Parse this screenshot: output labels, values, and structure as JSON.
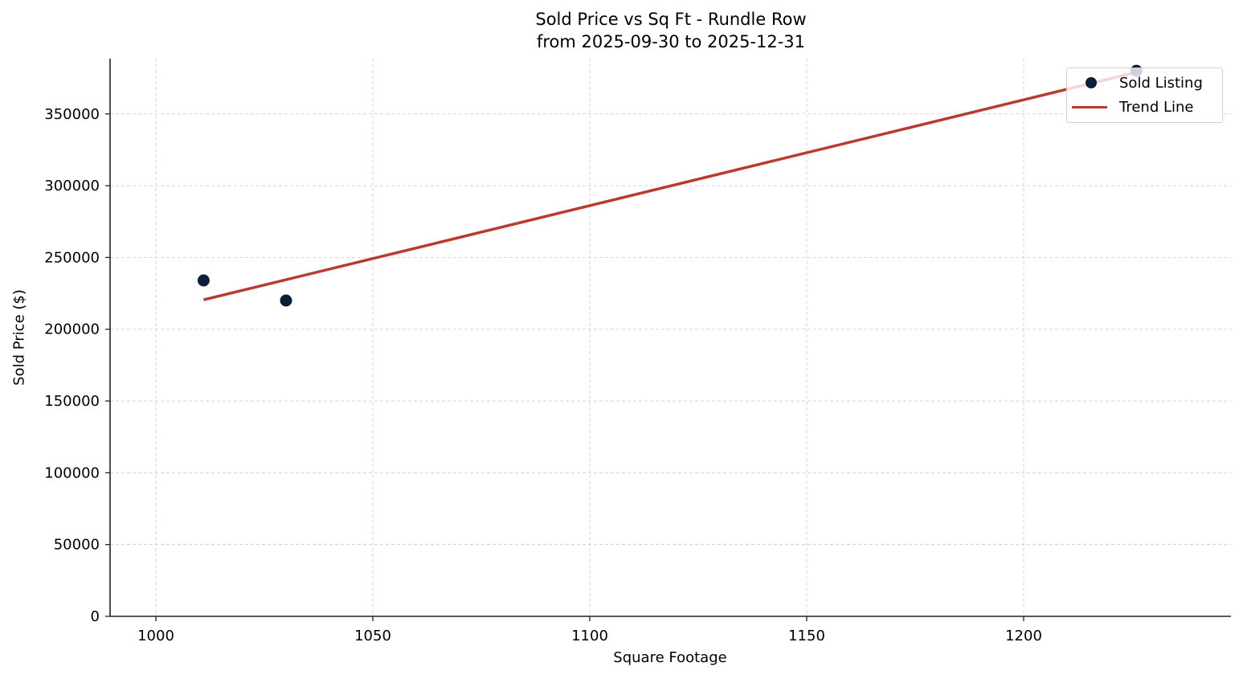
{
  "chart_data": {
    "type": "scatter",
    "title": "Sold Price vs Sq Ft - Rundle Row",
    "subtitle": "from 2025-09-30 to 2025-12-31",
    "xlabel": "Square Footage",
    "ylabel": "Sold Price ($)",
    "xlim": [
      989.5,
      1244.5
    ],
    "ylim": [
      0,
      388000
    ],
    "x_ticks": [
      1000,
      1050,
      1100,
      1150,
      1200
    ],
    "y_ticks": [
      0,
      50000,
      100000,
      150000,
      200000,
      250000,
      300000,
      350000
    ],
    "grid": true,
    "legend_position": "upper right",
    "series": [
      {
        "name": "Sold Listing",
        "kind": "scatter",
        "color": "#0b1f3a",
        "points": [
          {
            "x": 1011,
            "y": 234000
          },
          {
            "x": 1030,
            "y": 220000
          },
          {
            "x": 1226,
            "y": 380000
          }
        ]
      },
      {
        "name": "Trend Line",
        "kind": "line",
        "color": "#b83c2e",
        "points": [
          {
            "x": 1011,
            "y": 220500
          },
          {
            "x": 1226,
            "y": 379000
          }
        ]
      }
    ]
  },
  "legend": {
    "items": [
      {
        "label": "Sold Listing"
      },
      {
        "label": "Trend Line"
      }
    ]
  }
}
